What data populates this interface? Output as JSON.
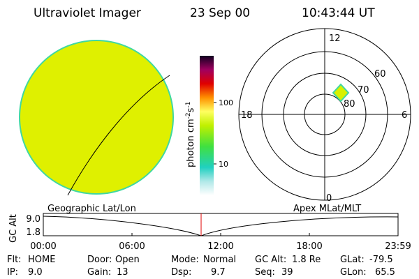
{
  "header": {
    "title": "Ultraviolet Imager",
    "date": "23 Sep 00",
    "time": "10:43:44 UT"
  },
  "colorbar": {
    "label": [
      "photon cm",
      "-2",
      "s",
      "-1"
    ],
    "ticks": [
      "100",
      "10"
    ]
  },
  "polar": {
    "hours": [
      "12",
      "18",
      "6",
      "0"
    ],
    "latitudes": [
      "60",
      "70",
      "80"
    ]
  },
  "timeline": {
    "left_label": "Geographic Lat/Lon",
    "right_label": "Apex MLat/MLT",
    "y_label": "GC Alt",
    "y_ticks": [
      "9.0",
      "1.8"
    ],
    "x_ticks": [
      "00:00",
      "06:00",
      "12:00",
      "18:00",
      "23:59"
    ]
  },
  "footer": [
    [
      {
        "label": "Flt:",
        "value": "HOME"
      },
      {
        "label": "Door:",
        "value": "Open"
      },
      {
        "label": "Mode:",
        "value": "Normal"
      },
      {
        "label": "GC Alt:",
        "value": "1.8 Re"
      },
      {
        "label": "GLat:",
        "value": "-79.5"
      }
    ],
    [
      {
        "label": "IP:",
        "value": "9.0"
      },
      {
        "label": "Gain:",
        "value": "13"
      },
      {
        "label": "Dsp:",
        "value": "9.7"
      },
      {
        "label": "Seq:",
        "value": "39"
      },
      {
        "label": "GLon:",
        "value": "65.5"
      }
    ]
  ]
}
